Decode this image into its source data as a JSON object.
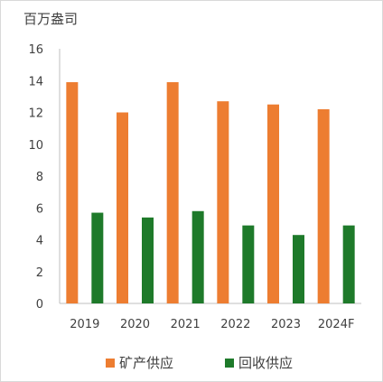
{
  "chart_data": {
    "type": "bar",
    "title": "",
    "unit_label": "百万盎司",
    "xlabel": "",
    "ylabel": "",
    "categories": [
      "2019",
      "2020",
      "2021",
      "2022",
      "2023",
      "2024F"
    ],
    "series": [
      {
        "name": "矿产供应",
        "color": "#ED7D31",
        "values": [
          13.9,
          12.0,
          13.9,
          12.7,
          12.5,
          12.2
        ]
      },
      {
        "name": "回收供应",
        "color": "#1E7A2A",
        "values": [
          5.7,
          5.4,
          5.8,
          4.9,
          4.3,
          4.9
        ]
      }
    ],
    "ylim": [
      0,
      16
    ],
    "yticks": [
      0,
      2,
      4,
      6,
      8,
      10,
      12,
      14,
      16
    ],
    "grid": false,
    "legend": "bottom"
  }
}
